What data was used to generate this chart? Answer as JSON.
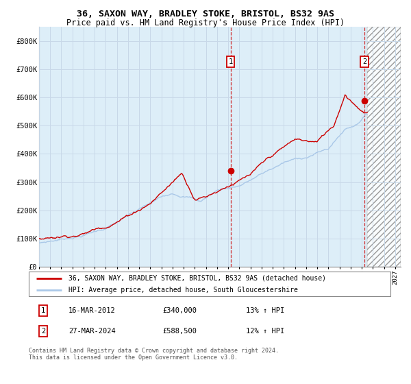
{
  "title1": "36, SAXON WAY, BRADLEY STOKE, BRISTOL, BS32 9AS",
  "title2": "Price paid vs. HM Land Registry's House Price Index (HPI)",
  "xlim_start": 1995.0,
  "xlim_end": 2027.5,
  "ylim": [
    0,
    850000
  ],
  "yticks": [
    0,
    100000,
    200000,
    300000,
    400000,
    500000,
    600000,
    700000,
    800000
  ],
  "ytick_labels": [
    "£0",
    "£100K",
    "£200K",
    "£300K",
    "£400K",
    "£500K",
    "£600K",
    "£700K",
    "£800K"
  ],
  "xtick_years": [
    1995,
    1996,
    1997,
    1998,
    1999,
    2000,
    2001,
    2002,
    2003,
    2004,
    2005,
    2006,
    2007,
    2008,
    2009,
    2010,
    2011,
    2012,
    2013,
    2014,
    2015,
    2016,
    2017,
    2018,
    2019,
    2020,
    2021,
    2022,
    2023,
    2024,
    2025,
    2026,
    2027
  ],
  "hpi_color": "#aac8e8",
  "price_color": "#cc0000",
  "bg_color": "#ddeef8",
  "grid_color": "#c8d8e8",
  "future_x": 2024.5,
  "vline1_x": 2012.21,
  "vline2_x": 2024.23,
  "sale1_x": 2012.21,
  "sale1_y": 340000,
  "sale2_x": 2024.23,
  "sale2_y": 588500,
  "legend_line1": "36, SAXON WAY, BRADLEY STOKE, BRISTOL, BS32 9AS (detached house)",
  "legend_line2": "HPI: Average price, detached house, South Gloucestershire",
  "note1_date": "16-MAR-2012",
  "note1_price": "£340,000",
  "note1_hpi": "13% ↑ HPI",
  "note2_date": "27-MAR-2024",
  "note2_price": "£588,500",
  "note2_hpi": "12% ↑ HPI",
  "footer": "Contains HM Land Registry data © Crown copyright and database right 2024.\nThis data is licensed under the Open Government Licence v3.0."
}
